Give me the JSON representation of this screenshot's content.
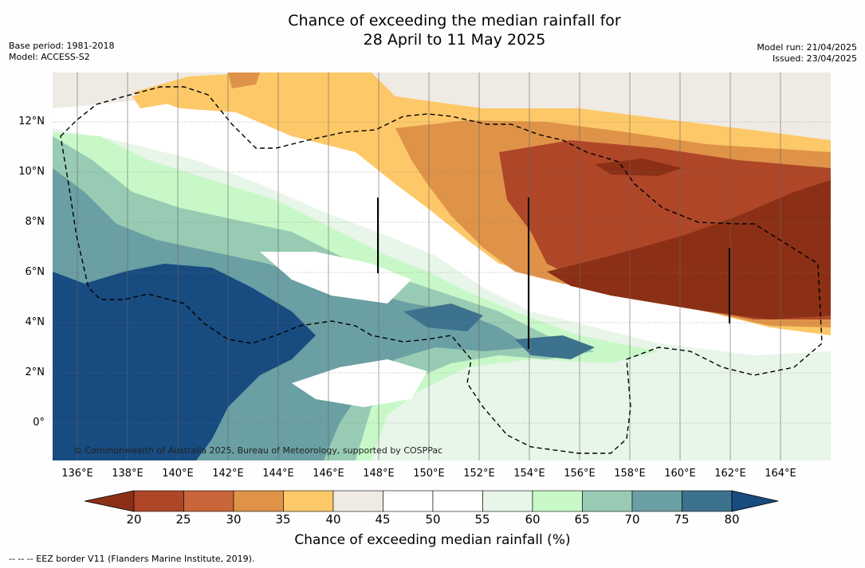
{
  "title_line1": "Chance of exceeding the median rainfall for",
  "title_line2": "28 April to 11 May 2025",
  "meta_left": {
    "base_period": "Base period: 1981-2018",
    "model": "Model: ACCESS-S2"
  },
  "meta_right": {
    "model_run": "Model run: 21/04/2025",
    "issued": "Issued: 23/04/2025"
  },
  "lat_labels": [
    "12°N",
    "10°N",
    "8°N",
    "6°N",
    "4°N",
    "2°N",
    "0°"
  ],
  "lon_labels": [
    "136°E",
    "138°E",
    "140°E",
    "142°E",
    "144°E",
    "146°E",
    "148°E",
    "150°E",
    "152°E",
    "154°E",
    "156°E",
    "158°E",
    "160°E",
    "162°E",
    "164°E"
  ],
  "copyright": "© Commonwealth of Australia 2025, Bureau of Meteorology, supported by COSPPac",
  "colorbar": {
    "title": "Chance of exceeding median rainfall (%)",
    "ticks": [
      "20",
      "25",
      "30",
      "35",
      "40",
      "45",
      "50",
      "55",
      "60",
      "65",
      "70",
      "75",
      "80"
    ],
    "colors": [
      "#8b3016",
      "#af4628",
      "#c8663a",
      "#df9348",
      "#fdc868",
      "#efebe4",
      "#ffffff",
      "#ffffff",
      "#e8f5e9",
      "#c8f8c8",
      "#98cbb3",
      "#6a9fa3",
      "#3d728e",
      "#184b80"
    ]
  },
  "footer": "-- -- -- EEZ border V11 (Flanders Marine Institute, 2019)."
}
